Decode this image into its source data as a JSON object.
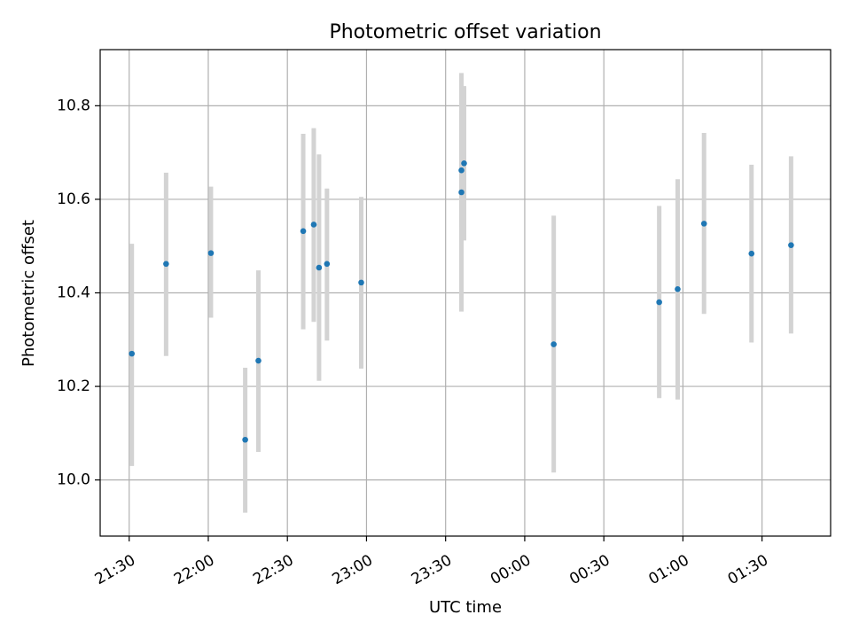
{
  "chart_data": {
    "type": "scatter",
    "title": "Photometric offset variation",
    "xlabel": "UTC time",
    "ylabel": "Photometric offset",
    "x_unit": "UTC time of day",
    "xlim": [
      "21:19",
      "01:56"
    ],
    "ylim": [
      9.88,
      10.92
    ],
    "grid": true,
    "x_ticks": [
      "21:30",
      "22:00",
      "22:30",
      "23:00",
      "23:30",
      "00:00",
      "00:30",
      "01:00",
      "01:30"
    ],
    "y_ticks": [
      "10.0",
      "10.2",
      "10.4",
      "10.6",
      "10.8"
    ],
    "marker_color": "#1f77b4",
    "errorbar_color": "#d3d3d3",
    "points": [
      {
        "x": "21:31",
        "y": 10.27,
        "yerr": [
          10.03,
          10.505
        ]
      },
      {
        "x": "21:44",
        "y": 10.462,
        "yerr": [
          10.265,
          10.657
        ]
      },
      {
        "x": "22:01",
        "y": 10.485,
        "yerr": [
          10.347,
          10.627
        ]
      },
      {
        "x": "22:14",
        "y": 10.086,
        "yerr": [
          9.93,
          10.24
        ]
      },
      {
        "x": "22:19",
        "y": 10.255,
        "yerr": [
          10.06,
          10.448
        ]
      },
      {
        "x": "22:36",
        "y": 10.532,
        "yerr": [
          10.322,
          10.74
        ]
      },
      {
        "x": "22:40",
        "y": 10.546,
        "yerr": [
          10.338,
          10.752
        ]
      },
      {
        "x": "22:42",
        "y": 10.454,
        "yerr": [
          10.212,
          10.696
        ]
      },
      {
        "x": "22:45",
        "y": 10.462,
        "yerr": [
          10.298,
          10.623
        ]
      },
      {
        "x": "22:58",
        "y": 10.422,
        "yerr": [
          10.238,
          10.605
        ]
      },
      {
        "x": "23:36",
        "y": 10.615,
        "yerr": [
          10.36,
          10.87
        ]
      },
      {
        "x": "23:36",
        "y": 10.662,
        "yerr": [
          10.54,
          10.79
        ]
      },
      {
        "x": "23:37",
        "y": 10.677,
        "yerr": [
          10.512,
          10.842
        ]
      },
      {
        "x": "00:11",
        "y": 10.29,
        "yerr": [
          10.016,
          10.565
        ]
      },
      {
        "x": "00:51",
        "y": 10.38,
        "yerr": [
          10.175,
          10.586
        ]
      },
      {
        "x": "00:58",
        "y": 10.408,
        "yerr": [
          10.172,
          10.643
        ]
      },
      {
        "x": "01:08",
        "y": 10.548,
        "yerr": [
          10.355,
          10.742
        ]
      },
      {
        "x": "01:26",
        "y": 10.484,
        "yerr": [
          10.294,
          10.674
        ]
      },
      {
        "x": "01:41",
        "y": 10.502,
        "yerr": [
          10.313,
          10.692
        ]
      }
    ]
  }
}
